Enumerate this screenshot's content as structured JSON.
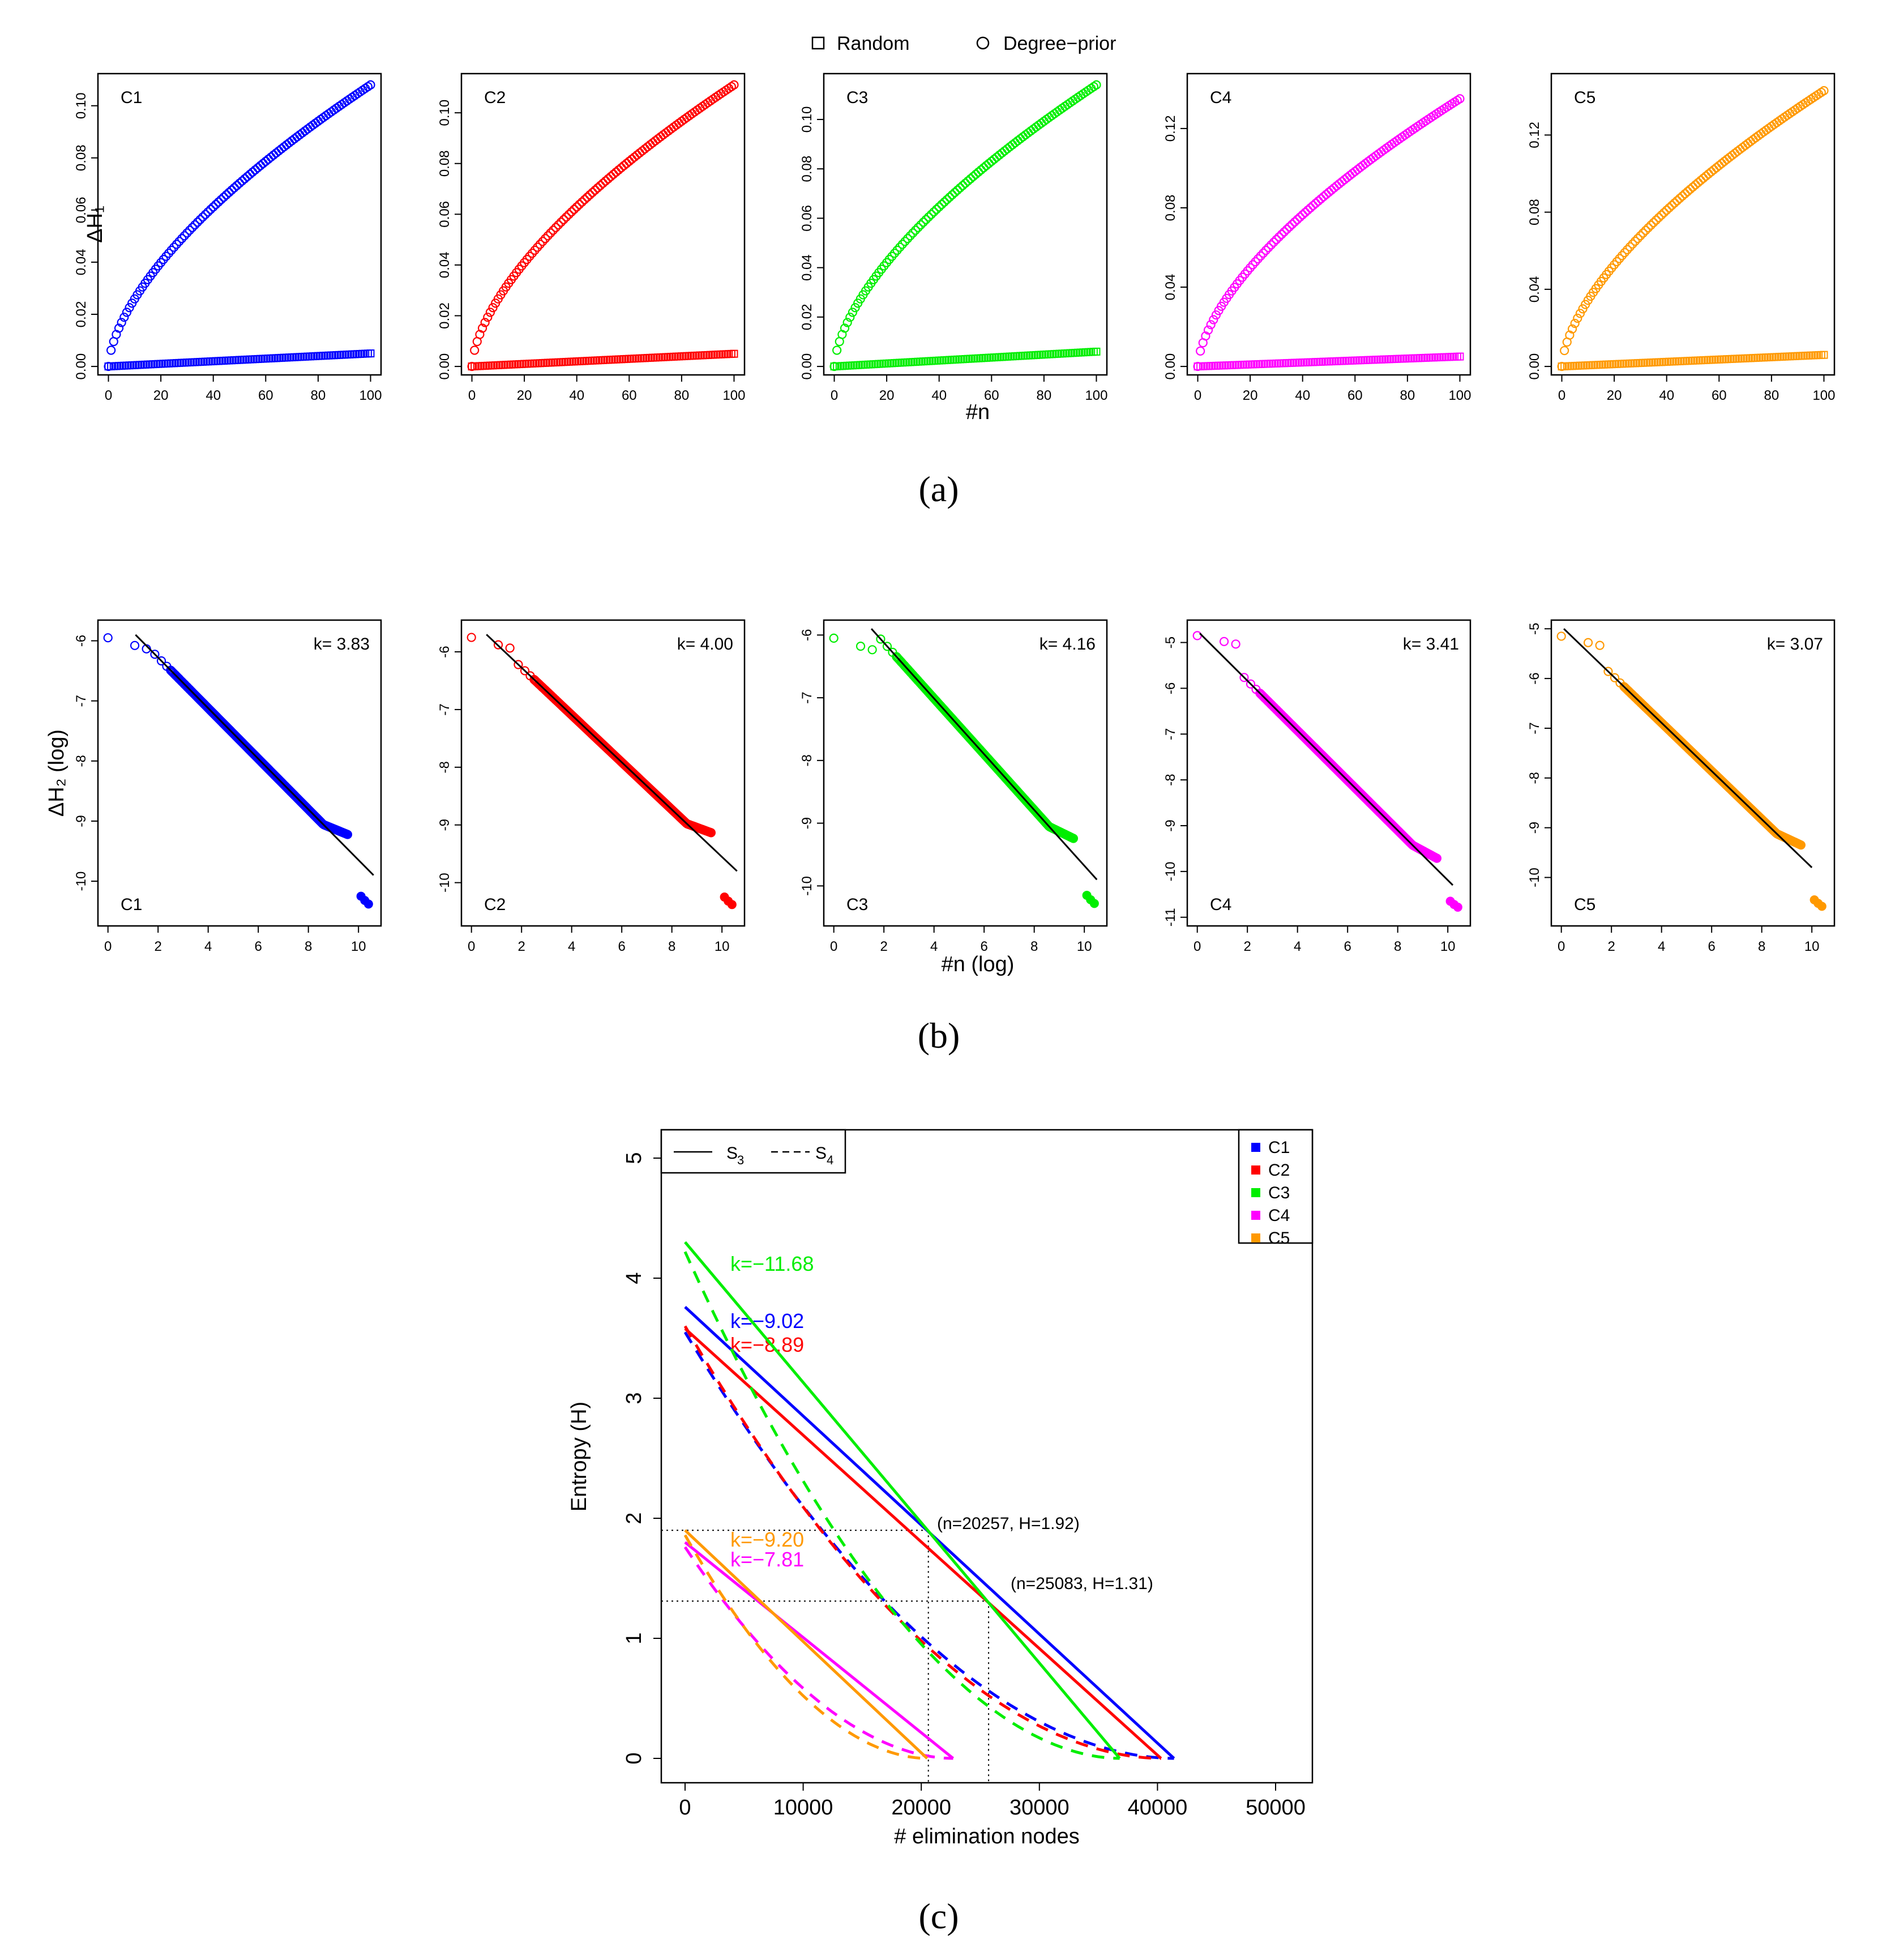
{
  "legend_top": {
    "random": "Random",
    "degree_prior": "Degree−prior"
  },
  "panel_labels": {
    "a": "(a)",
    "b": "(b)",
    "c": "(c)"
  },
  "colors": {
    "C1": "#0000ff",
    "C2": "#ff0000",
    "C3": "#00ee00",
    "C4": "#ff00ff",
    "C5": "#ff9900"
  },
  "chart_data": [
    {
      "id": "a",
      "type": "scatter",
      "xlabel": "#n",
      "ylabel": "ΔH₁",
      "x": {
        "range": [
          0,
          100
        ],
        "ticks": [
          "0",
          "20",
          "40",
          "60",
          "80",
          "100"
        ]
      },
      "series_markers": {
        "random": "square",
        "degree_prior": "circle"
      },
      "panels": [
        {
          "name": "C1",
          "ylim": [
            0,
            0.108
          ],
          "yticks": [
            "0.00",
            "0.02",
            "0.04",
            "0.06",
            "0.08",
            "0.10"
          ],
          "degree_prior_end": 0.108,
          "random_end": 0.005
        },
        {
          "name": "C2",
          "ylim": [
            0,
            0.111
          ],
          "yticks": [
            "0.00",
            "0.02",
            "0.04",
            "0.06",
            "0.08",
            "0.10"
          ],
          "degree_prior_end": 0.111,
          "random_end": 0.005
        },
        {
          "name": "C3",
          "ylim": [
            0,
            0.114
          ],
          "yticks": [
            "0.00",
            "0.02",
            "0.04",
            "0.06",
            "0.08",
            "0.10"
          ],
          "degree_prior_end": 0.114,
          "random_end": 0.006
        },
        {
          "name": "C4",
          "ylim": [
            0,
            0.142
          ],
          "yticks": [
            "0.00",
            "0.04",
            "0.08",
            "0.12"
          ],
          "degree_prior_end": 0.135,
          "random_end": 0.005
        },
        {
          "name": "C5",
          "ylim": [
            0,
            0.146
          ],
          "yticks": [
            "0.00",
            "0.04",
            "0.08",
            "0.12"
          ],
          "degree_prior_end": 0.143,
          "random_end": 0.006
        }
      ]
    },
    {
      "id": "b",
      "type": "scatter",
      "xlabel": "#n (log)",
      "ylabel": "ΔH₂ (log)",
      "x": {
        "range": [
          0,
          10.6
        ],
        "ticks": [
          "0",
          "2",
          "4",
          "6",
          "8",
          "10"
        ]
      },
      "panels": [
        {
          "name": "C1",
          "k_label": "k= 3.83",
          "ylim": [
            -10.6,
            -5.8
          ],
          "yticks": [
            "-10",
            "-9",
            "-8",
            "-7",
            "-6"
          ],
          "fit_start": [
            1.1,
            -5.9
          ],
          "fit_end": [
            10.6,
            -9.9
          ]
        },
        {
          "name": "C2",
          "k_label": "k= 4.00",
          "ylim": [
            -10.6,
            -5.6
          ],
          "yticks": [
            "-10",
            "-9",
            "-8",
            "-7",
            "-6"
          ],
          "fit_start": [
            0.6,
            -5.7
          ],
          "fit_end": [
            10.6,
            -9.8
          ]
        },
        {
          "name": "C3",
          "k_label": "k= 4.16",
          "ylim": [
            -10.5,
            -5.9
          ],
          "yticks": [
            "-10",
            "-9",
            "-8",
            "-7",
            "-6"
          ],
          "fit_start": [
            1.5,
            -5.9
          ],
          "fit_end": [
            10.5,
            -9.9
          ]
        },
        {
          "name": "C4",
          "k_label": "k= 3.41",
          "ylim": [
            -11.0,
            -4.7
          ],
          "yticks": [
            "-11",
            "-10",
            "-9",
            "-8",
            "-7",
            "-6",
            "-5"
          ],
          "fit_start": [
            0.1,
            -4.8
          ],
          "fit_end": [
            10.2,
            -10.3
          ]
        },
        {
          "name": "C5",
          "k_label": "k= 3.07",
          "ylim": [
            -10.8,
            -5.0
          ],
          "yticks": [
            "-10",
            "-9",
            "-8",
            "-7",
            "-6",
            "-5"
          ],
          "fit_start": [
            0.1,
            -5.0
          ],
          "fit_end": [
            10.0,
            -9.8
          ]
        }
      ]
    },
    {
      "id": "c",
      "type": "line",
      "xlabel": "# elimination nodes",
      "ylabel": "Entropy (H)",
      "xlim": [
        0,
        50000
      ],
      "xticks": [
        "0",
        "10000",
        "20000",
        "30000",
        "40000",
        "50000"
      ],
      "ylim": [
        0,
        5
      ],
      "yticks": [
        "0",
        "1",
        "2",
        "3",
        "4",
        "5"
      ],
      "style_legend": {
        "solid": "S",
        "solid_sub": "3",
        "dashed": "S",
        "dashed_sub": "4"
      },
      "legend": [
        "C1",
        "C2",
        "C3",
        "C4",
        "C5"
      ],
      "series": [
        {
          "name": "C1",
          "k_label": "k=−9.02",
          "h0": 3.76,
          "n_end": 41400,
          "s4_start": 3.55
        },
        {
          "name": "C2",
          "k_label": "k=−8.89",
          "h0": 3.58,
          "n_end": 40300,
          "s4_start": 3.6
        },
        {
          "name": "C3",
          "k_label": "k=−11.68",
          "h0": 4.3,
          "n_end": 36800,
          "s4_start": 4.22
        },
        {
          "name": "C4",
          "k_label": "k=−7.81",
          "h0": 1.8,
          "n_end": 22700,
          "s4_start": 1.76
        },
        {
          "name": "C5",
          "k_label": "k=−9.20",
          "h0": 1.9,
          "n_end": 20500,
          "s4_start": 1.86
        }
      ],
      "annotations": [
        {
          "text": "(n=20257, H=1.92)",
          "n": 20600,
          "H": 1.9
        },
        {
          "text": "(n=25083, H=1.31)",
          "n": 25700,
          "H": 1.31
        }
      ]
    }
  ]
}
